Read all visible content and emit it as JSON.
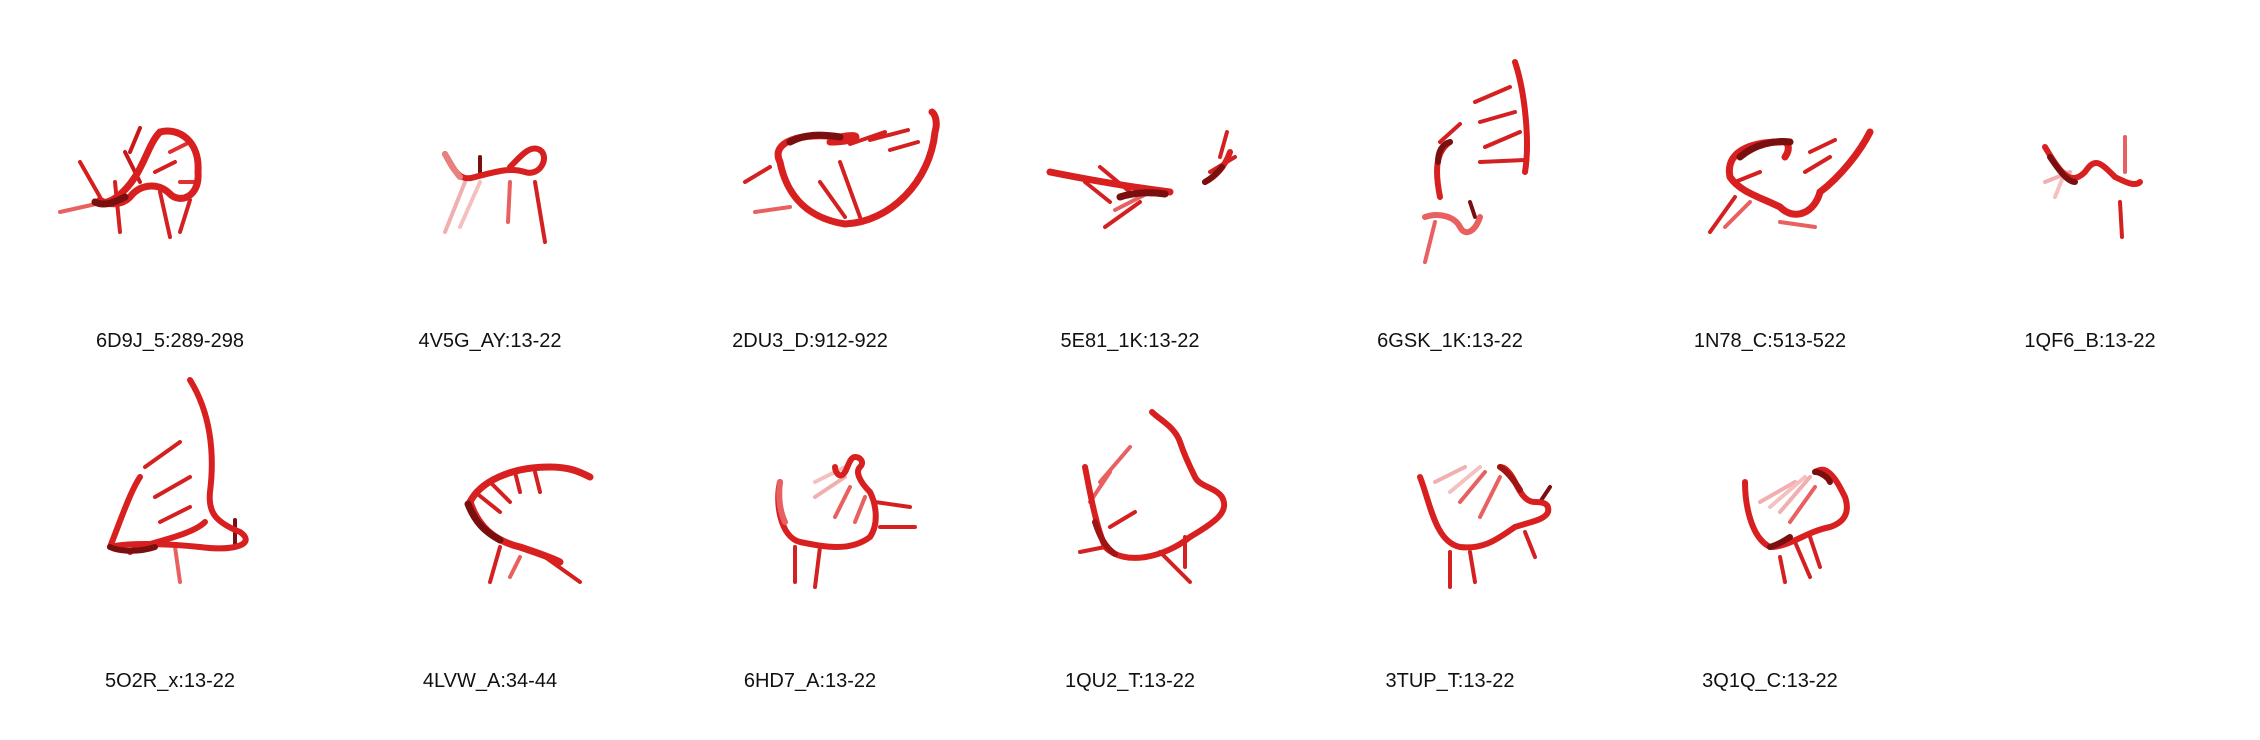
{
  "colors": {
    "tube": "#e02020",
    "tube_dark": "#8a1010",
    "tube_light": "#f08a8a",
    "background": "#ffffff",
    "caption": "#111111"
  },
  "structures": [
    {
      "label": "6D9J_5:289-298"
    },
    {
      "label": "4V5G_AY:13-22"
    },
    {
      "label": "2DU3_D:912-922"
    },
    {
      "label": "5E81_1K:13-22"
    },
    {
      "label": "6GSK_1K:13-22"
    },
    {
      "label": "1N78_C:513-522"
    },
    {
      "label": "1QF6_B:13-22"
    },
    {
      "label": "5O2R_x:13-22"
    },
    {
      "label": "4LVW_A:34-44"
    },
    {
      "label": "6HD7_A:13-22"
    },
    {
      "label": "1QU2_T:13-22"
    },
    {
      "label": "3TUP_T:13-22"
    },
    {
      "label": "3Q1Q_C:13-22"
    }
  ]
}
